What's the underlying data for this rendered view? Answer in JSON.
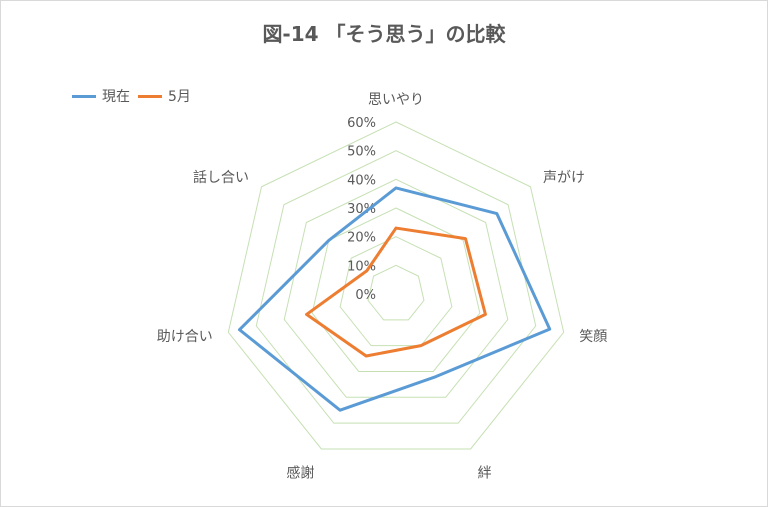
{
  "chart_data": {
    "type": "radar",
    "title": "図-14 「そう思う」の比較",
    "categories": [
      "思いやり",
      "声がけ",
      "笑顔",
      "絆",
      "感謝",
      "助け合い",
      "話し合い"
    ],
    "series": [
      {
        "name": "現在",
        "values": [
          37,
          45,
          55,
          32,
          45,
          56,
          30
        ],
        "color": "#5b9bd5"
      },
      {
        "name": "5月",
        "values": [
          23,
          31,
          32,
          20,
          24,
          32,
          13
        ],
        "color": "#ed7d31"
      }
    ],
    "r_ticks": [
      "0%",
      "10%",
      "20%",
      "30%",
      "40%",
      "50%",
      "60%"
    ],
    "rlim": [
      0,
      60
    ],
    "grid_color": "#c6e0b4",
    "legend_position": "top-left"
  }
}
